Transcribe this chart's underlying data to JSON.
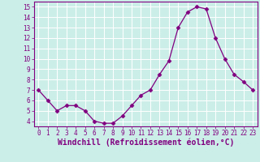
{
  "x": [
    0,
    1,
    2,
    3,
    4,
    5,
    6,
    7,
    8,
    9,
    10,
    11,
    12,
    13,
    14,
    15,
    16,
    17,
    18,
    19,
    20,
    21,
    22,
    23
  ],
  "y": [
    7.0,
    6.0,
    5.0,
    5.5,
    5.5,
    5.0,
    4.0,
    3.8,
    3.8,
    4.5,
    5.5,
    6.5,
    7.0,
    8.5,
    9.8,
    13.0,
    14.5,
    15.0,
    14.8,
    12.0,
    10.0,
    8.5,
    7.8,
    7.0
  ],
  "line_color": "#800080",
  "marker": "D",
  "marker_size": 2.5,
  "bg_color": "#cceee8",
  "grid_color": "#ffffff",
  "xlabel": "Windchill (Refroidissement éolien,°C)",
  "xlabel_color": "#800080",
  "tick_color": "#800080",
  "ylim": [
    3.5,
    15.5
  ],
  "xlim": [
    -0.5,
    23.5
  ],
  "yticks": [
    4,
    5,
    6,
    7,
    8,
    9,
    10,
    11,
    12,
    13,
    14,
    15
  ],
  "xticks": [
    0,
    1,
    2,
    3,
    4,
    5,
    6,
    7,
    8,
    9,
    10,
    11,
    12,
    13,
    14,
    15,
    16,
    17,
    18,
    19,
    20,
    21,
    22,
    23
  ],
  "tick_fontsize": 5.5,
  "xlabel_fontsize": 7,
  "linewidth": 0.9
}
